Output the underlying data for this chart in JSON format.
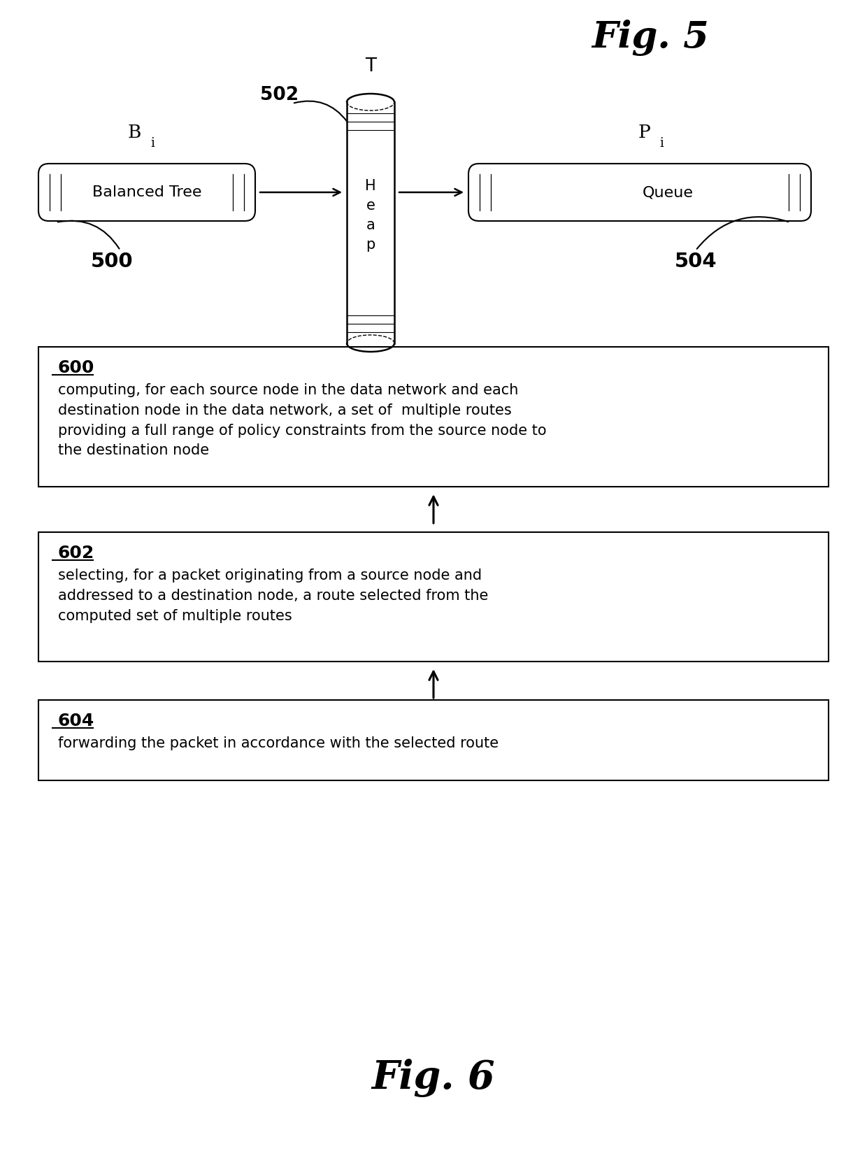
{
  "fig_title_5": "Fig. 5",
  "fig_title_6": "Fig. 6",
  "fig5_label_T": "T",
  "fig5_label_502": "502",
  "fig5_label_500": "500",
  "fig5_label_504": "504",
  "fig5_heap_text": "H\ne\na\np",
  "fig5_balanced_tree_text": "Balanced Tree",
  "fig5_queue_text": "Queue",
  "box600_label": "600",
  "box600_text": "computing, for each source node in the data network and each\ndestination node in the data network, a set of  multiple routes\nproviding a full range of policy constraints from the source node to\nthe destination node",
  "box602_label": "602",
  "box602_text": "selecting, for a packet originating from a source node and\naddressed to a destination node, a route selected from the\ncomputed set of multiple routes",
  "box604_label": "604",
  "box604_text": "forwarding the packet in accordance with the selected route",
  "background_color": "#ffffff",
  "box_edge_color": "#000000",
  "text_color": "#000000",
  "arrow_color": "#000000"
}
